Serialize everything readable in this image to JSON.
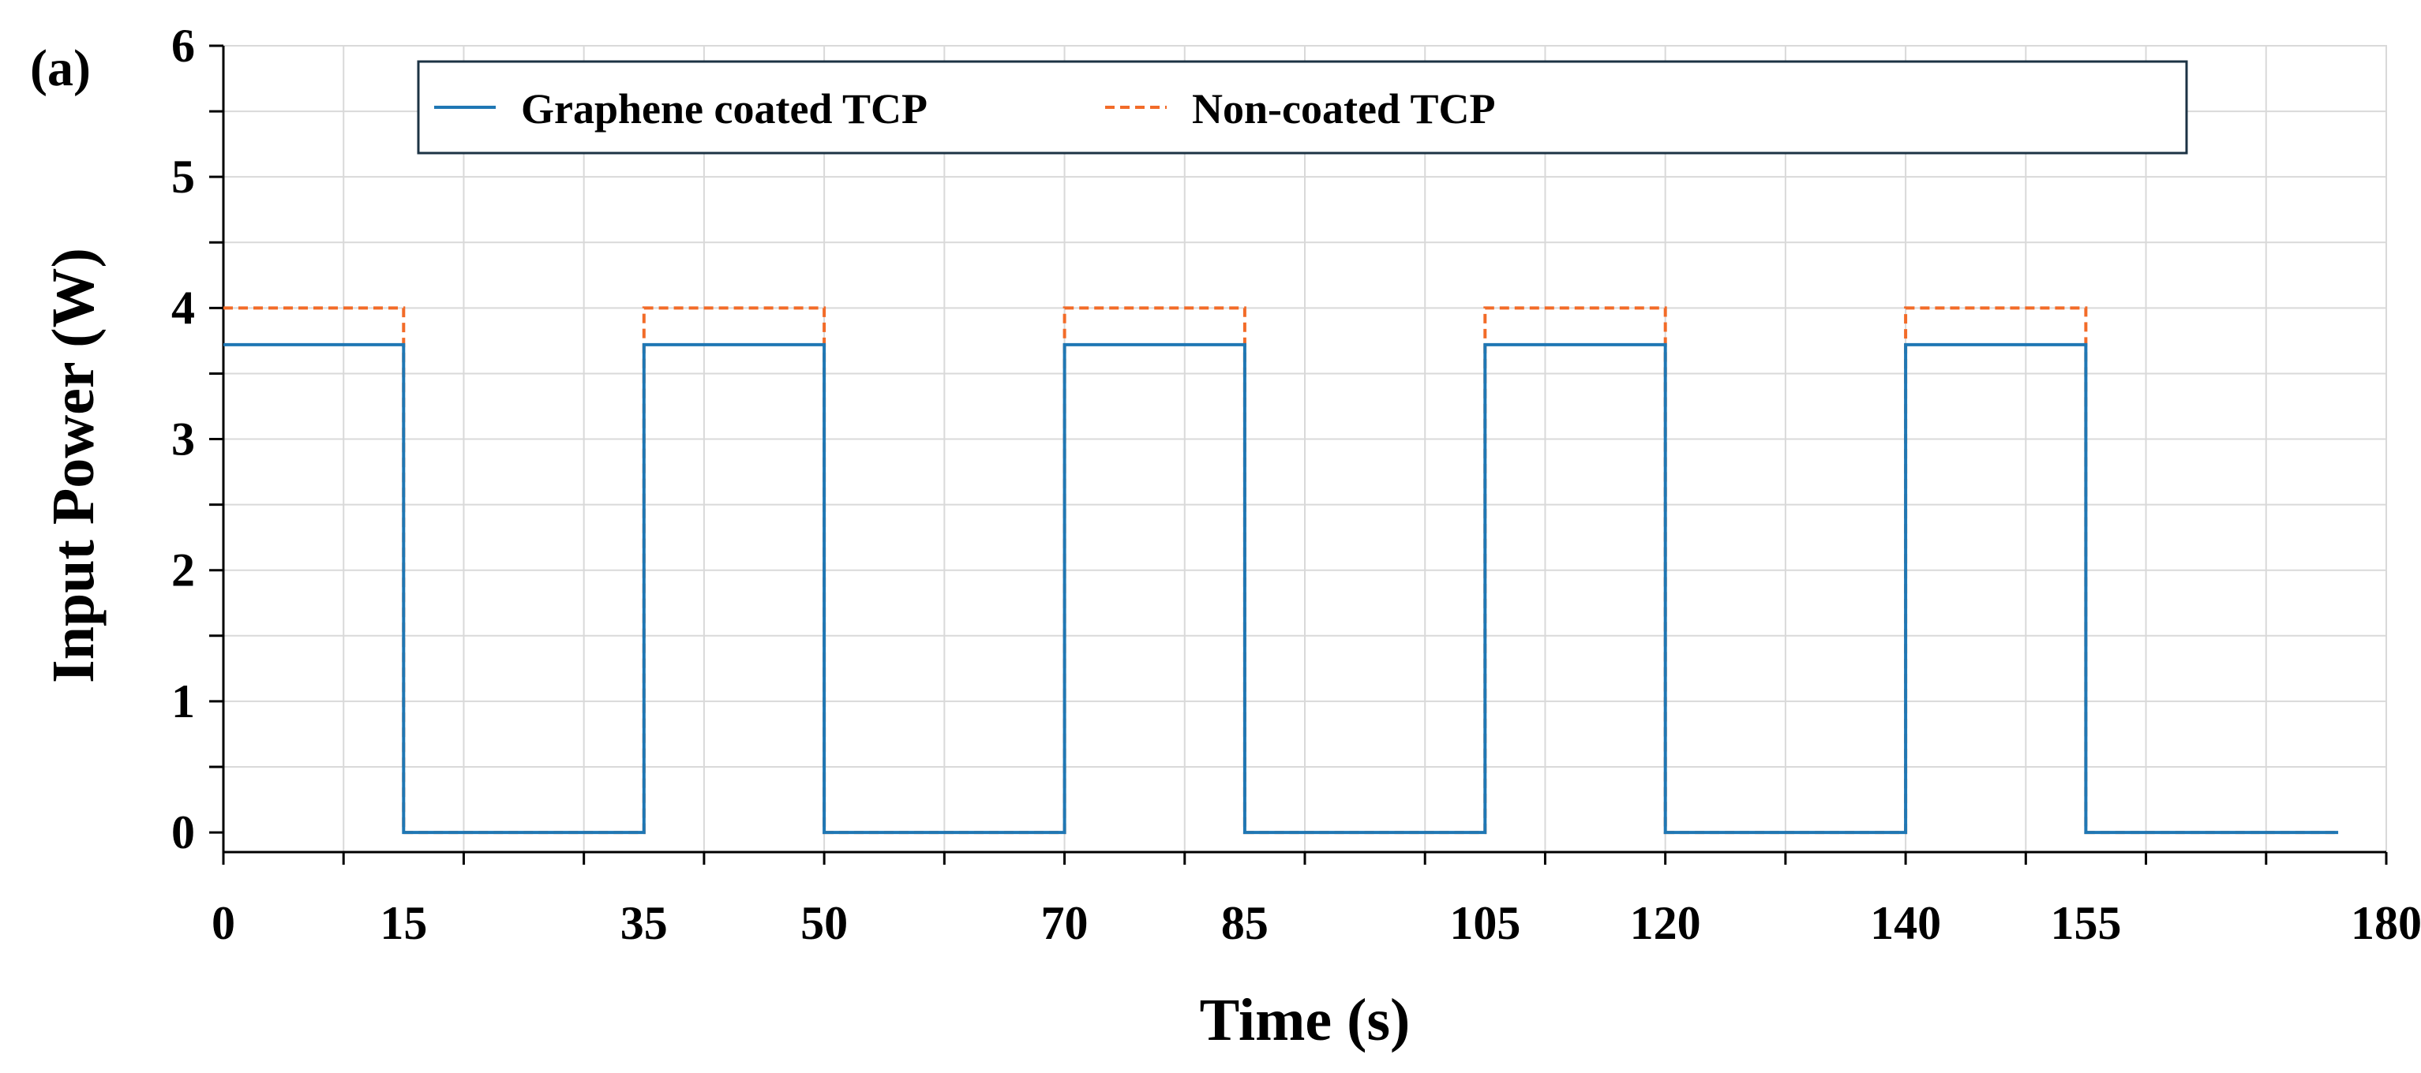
{
  "chart_data": {
    "type": "line",
    "panel_label": "(a)",
    "xlabel": "Time (s)",
    "ylabel": "Input Power (W)",
    "xlim": [
      0,
      180
    ],
    "ylim": [
      0,
      6
    ],
    "x_tick_labels": [
      "0",
      "15",
      "35",
      "50",
      "70",
      "85",
      "105",
      "120",
      "140",
      "155",
      "180"
    ],
    "x_ticks": [
      0,
      15,
      35,
      50,
      70,
      85,
      105,
      120,
      140,
      155,
      180
    ],
    "y_tick_labels": [
      "0",
      "1",
      "2",
      "3",
      "4",
      "5",
      "6"
    ],
    "y_ticks": [
      0,
      1,
      2,
      3,
      4,
      5,
      6
    ],
    "grid": true,
    "legend_position": "top",
    "colors": {
      "graphene": "#1f77b4",
      "noncoated": "#f26b28",
      "grid": "#d9d9d9",
      "legend_border": "#1c3344"
    },
    "series": [
      {
        "name": "Graphene coated TCP",
        "style": "solid",
        "x": [
          0,
          15,
          15,
          35,
          35,
          50,
          50,
          70,
          70,
          85,
          85,
          105,
          105,
          120,
          120,
          140,
          140,
          155,
          155,
          176
        ],
        "y": [
          3.72,
          3.72,
          0,
          0,
          3.72,
          3.72,
          0,
          0,
          3.72,
          3.72,
          0,
          0,
          3.72,
          3.72,
          0,
          0,
          3.72,
          3.72,
          0,
          0
        ]
      },
      {
        "name": "Non-coated TCP",
        "style": "dashed",
        "x": [
          0,
          15,
          15,
          35,
          35,
          50,
          50,
          70,
          70,
          85,
          85,
          105,
          105,
          120,
          120,
          140,
          140,
          155,
          155,
          176
        ],
        "y": [
          4.0,
          4.0,
          0,
          0,
          4.0,
          4.0,
          0,
          0,
          4.0,
          4.0,
          0,
          0,
          4.0,
          4.0,
          0,
          0,
          4.0,
          4.0,
          0,
          0
        ]
      }
    ]
  }
}
